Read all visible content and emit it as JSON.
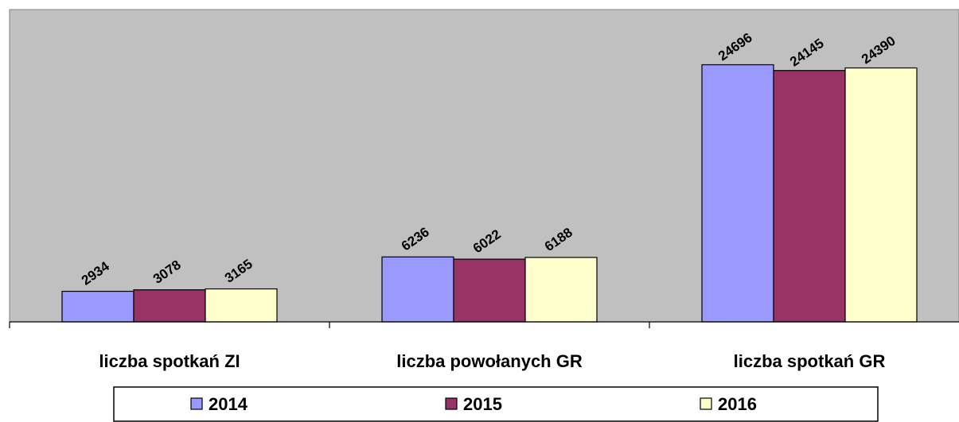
{
  "chart_data": {
    "type": "bar",
    "categories": [
      "liczba spotkań ZI",
      "liczba powołanych GR",
      "liczba spotkań GR"
    ],
    "series": [
      {
        "name": "2014",
        "color": "#9999ff",
        "values": [
          2934,
          6236,
          24696
        ]
      },
      {
        "name": "2015",
        "color": "#993366",
        "values": [
          3078,
          6022,
          24145
        ]
      },
      {
        "name": "2016",
        "color": "#ffffcc",
        "values": [
          3165,
          6188,
          24390
        ]
      }
    ],
    "ylim": [
      0,
      30000
    ],
    "legend": "bottom"
  }
}
